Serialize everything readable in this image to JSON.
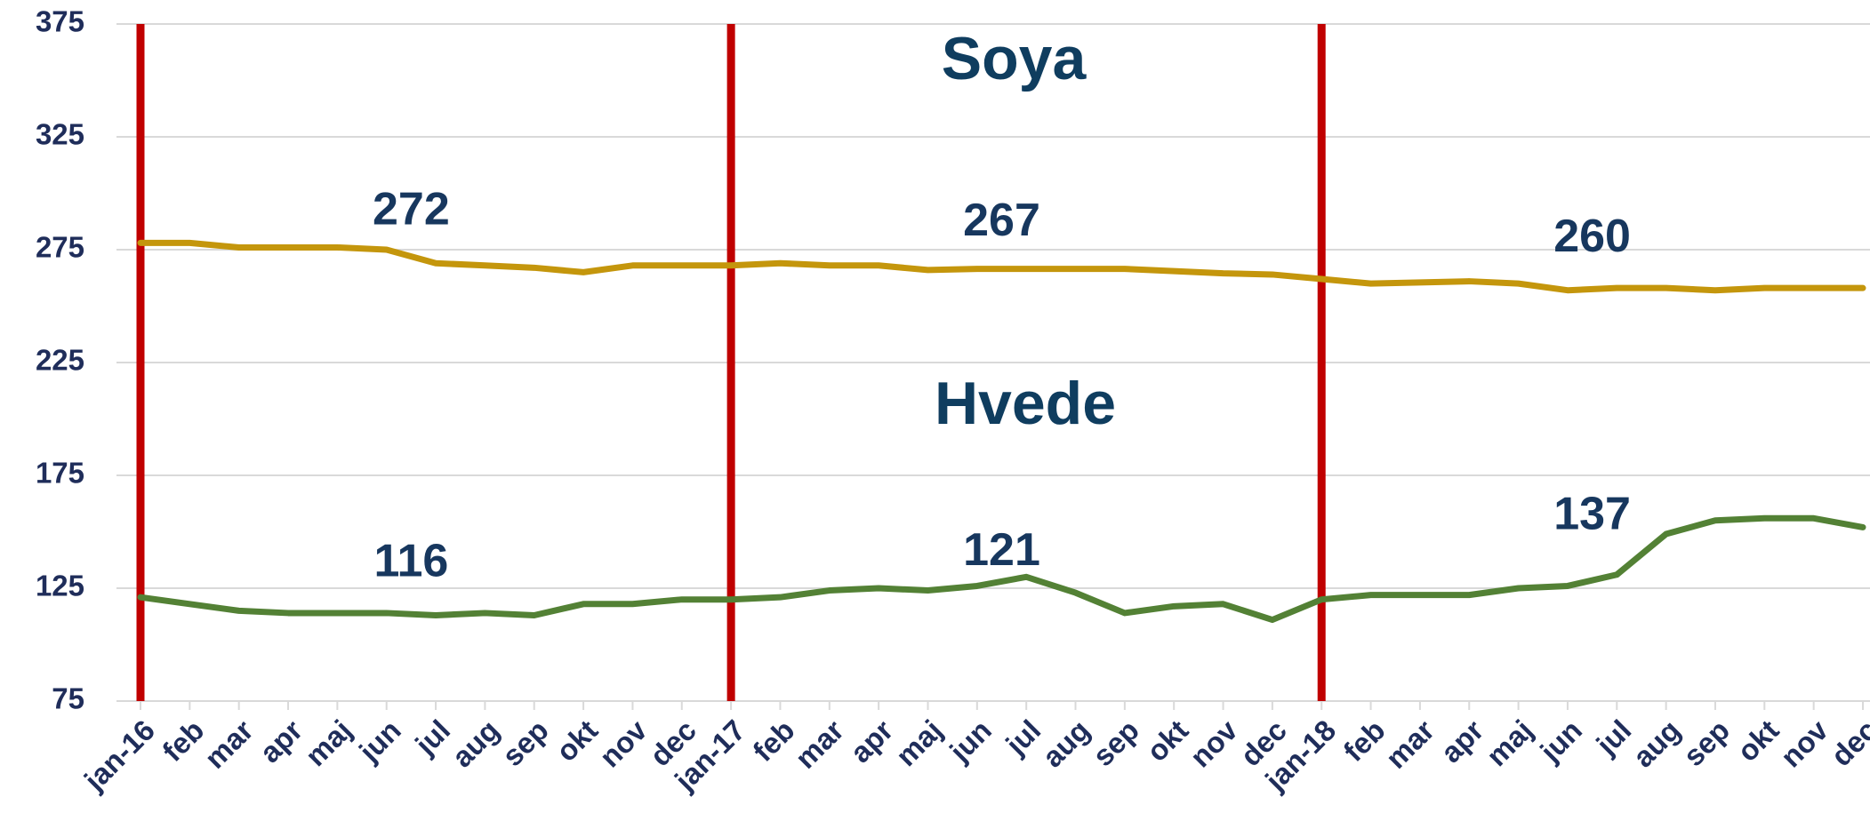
{
  "chart_data": {
    "type": "line",
    "categories": [
      "jan-16",
      "feb",
      "mar",
      "apr",
      "maj",
      "jun",
      "jul",
      "aug",
      "sep",
      "okt",
      "nov",
      "dec",
      "jan-17",
      "feb",
      "mar",
      "apr",
      "maj",
      "jun",
      "jul",
      "aug",
      "sep",
      "okt",
      "nov",
      "dec",
      "jan-18",
      "feb",
      "mar",
      "apr",
      "maj",
      "jun",
      "jul",
      "aug",
      "sep",
      "okt",
      "nov",
      "dec"
    ],
    "series": [
      {
        "name": "Soya",
        "color": "#c4960c",
        "values": [
          278,
          278,
          276,
          276,
          276,
          275,
          269,
          268,
          267,
          265,
          268,
          268,
          268,
          269,
          268,
          268,
          266,
          266.5,
          266.5,
          266.5,
          266.5,
          265.5,
          264.5,
          264,
          262,
          260,
          260.5,
          261,
          260,
          257,
          258,
          258,
          257,
          258,
          258,
          258
        ],
        "averages": [
          272,
          267,
          260
        ]
      },
      {
        "name": "Hvede",
        "color": "#538135",
        "values": [
          121,
          118,
          115,
          114,
          114,
          114,
          113,
          114,
          113,
          118,
          118,
          120,
          120,
          121,
          124,
          125,
          124,
          126,
          130,
          123,
          114,
          117,
          118,
          111,
          120,
          122,
          122,
          122,
          125,
          126,
          131,
          149,
          155,
          156,
          156,
          152
        ],
        "averages": [
          116,
          121,
          137
        ]
      }
    ],
    "separator_color": "#c00000",
    "ylim": [
      75,
      375
    ],
    "yticks": [
      75,
      125,
      175,
      225,
      275,
      325,
      375
    ],
    "grid": true
  }
}
